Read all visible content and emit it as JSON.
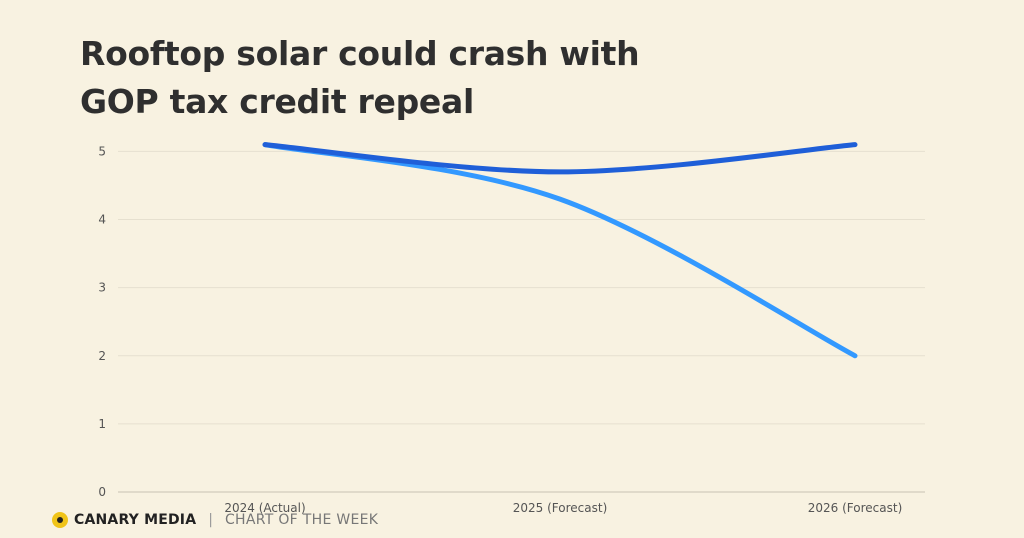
{
  "header": {
    "title_line1": "Rooftop solar could crash with",
    "title_line2": "GOP tax credit repeal"
  },
  "footer": {
    "brand": "CANARY MEDIA",
    "separator": "|",
    "tagline": "CHART OF THE WEEK"
  },
  "colors": {
    "background": "#f8f2e1",
    "series_dark": "#1f5fd8",
    "series_light": "#3399ff",
    "logo": "#f0c419"
  },
  "chart_data": {
    "type": "line",
    "title": "Rooftop solar could crash with GOP tax credit repeal",
    "categories": [
      "2024 (Actual)",
      "2025 (Forecast)",
      "2026 (Forecast)"
    ],
    "yticks": [
      0,
      1,
      2,
      3,
      4,
      5
    ],
    "ylim": [
      0,
      5.3
    ],
    "grid": true,
    "legend": "none",
    "series": [
      {
        "color": "#1f5fd8",
        "values": [
          5.1,
          4.7,
          5.1
        ]
      },
      {
        "color": "#3399ff",
        "values": [
          5.1,
          4.3,
          2.0
        ]
      }
    ]
  }
}
